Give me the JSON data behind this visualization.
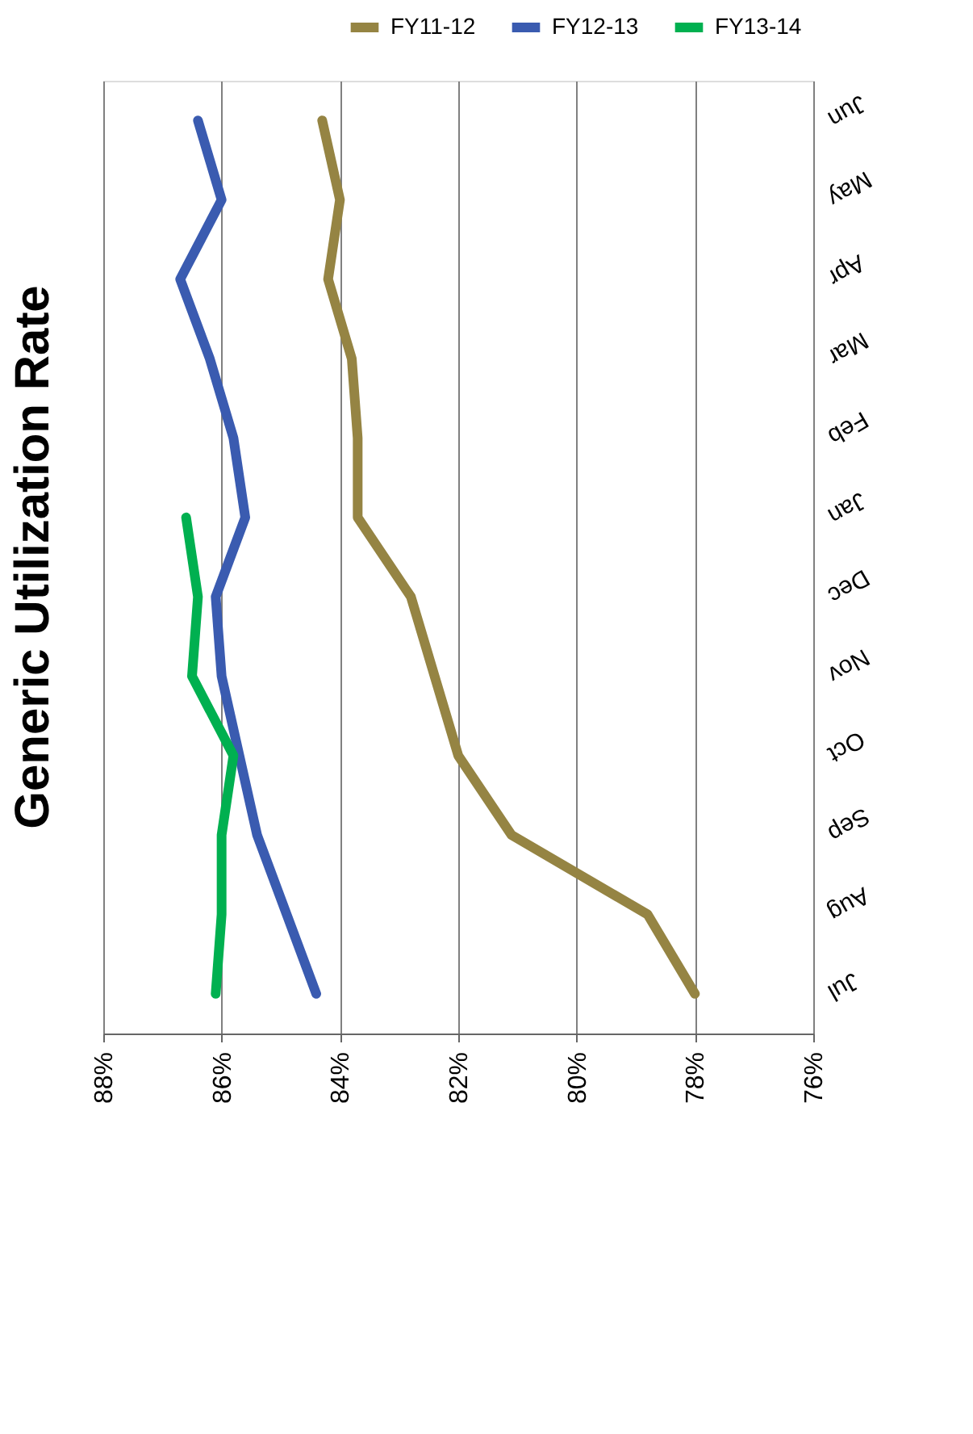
{
  "chart_data": {
    "type": "line",
    "title": "Generic Utilization Rate",
    "categories": [
      "Jun",
      "May",
      "Apr",
      "Mar",
      "Feb",
      "Jan",
      "Dec",
      "Nov",
      "Oct",
      "Sep",
      "Aug",
      "Jul"
    ],
    "series": [
      {
        "name": "FY11-12",
        "color": "#958443",
        "values": [
          84.3,
          84.0,
          84.2,
          83.8,
          83.7,
          83.7,
          82.8,
          82.4,
          82.0,
          81.1,
          78.8,
          78.0
        ]
      },
      {
        "name": "FY12-13",
        "color": "#3a5bb0",
        "values": [
          86.4,
          86.0,
          86.7,
          86.2,
          85.8,
          85.6,
          86.1,
          86.0,
          85.7,
          85.4,
          84.9,
          84.4
        ]
      },
      {
        "name": "FY13-14",
        "color": "#00b050",
        "values": [
          null,
          null,
          null,
          null,
          null,
          86.6,
          86.4,
          86.5,
          85.8,
          86.0,
          86.0,
          86.1
        ]
      }
    ],
    "orientation": "horizontal",
    "xlim": [
      88,
      76
    ],
    "xticks": [
      {
        "value": 88,
        "label": "88%"
      },
      {
        "value": 86,
        "label": "86%"
      },
      {
        "value": 84,
        "label": "84%"
      },
      {
        "value": 82,
        "label": "82%"
      },
      {
        "value": 80,
        "label": "80%"
      },
      {
        "value": 78,
        "label": "78%"
      },
      {
        "value": 76,
        "label": "76%"
      }
    ],
    "grid": "x",
    "legend": "top right",
    "marker": "none",
    "line_style": "solid"
  }
}
